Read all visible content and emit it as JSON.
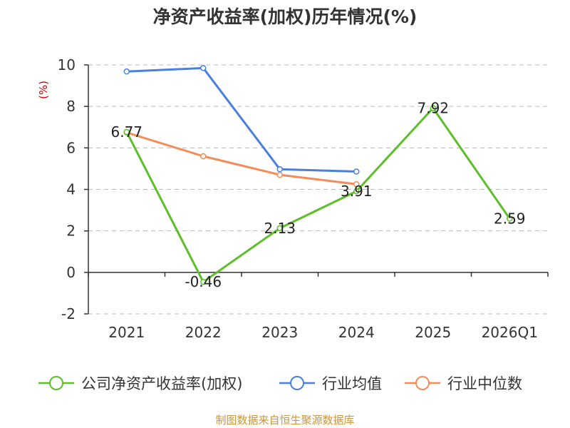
{
  "title": "净资产收益率(加权)历年情况(%)",
  "footer": "制图数据来自恒生聚源数据库",
  "chart_data": {
    "type": "line",
    "title": "净资产收益率(加权)历年情况(%)",
    "ylabel": "(%)",
    "xlabel": "",
    "categories": [
      "2021",
      "2022",
      "2023",
      "2024",
      "2025",
      "2026Q1"
    ],
    "ylim": [
      -2,
      10
    ],
    "yticks": [
      "-2",
      "0",
      "2",
      "4",
      "6",
      "8",
      "10"
    ],
    "grid": true,
    "legend_position": "bottom",
    "series": [
      {
        "name": "公司净资产收益率(加权)",
        "color": "#5cbf2a",
        "values": [
          6.77,
          -0.46,
          2.13,
          3.91,
          7.92,
          2.59
        ],
        "labels": [
          "6.77",
          "-0.46",
          "2.13",
          "3.91",
          "7.92",
          "2.59"
        ]
      },
      {
        "name": "行业均值",
        "color": "#4a7fdc",
        "values": [
          9.68,
          9.85,
          4.97,
          4.86,
          null,
          null
        ]
      },
      {
        "name": "行业中位数",
        "color": "#f28c5a",
        "values": [
          6.74,
          5.6,
          4.7,
          4.25,
          null,
          null
        ]
      }
    ]
  }
}
